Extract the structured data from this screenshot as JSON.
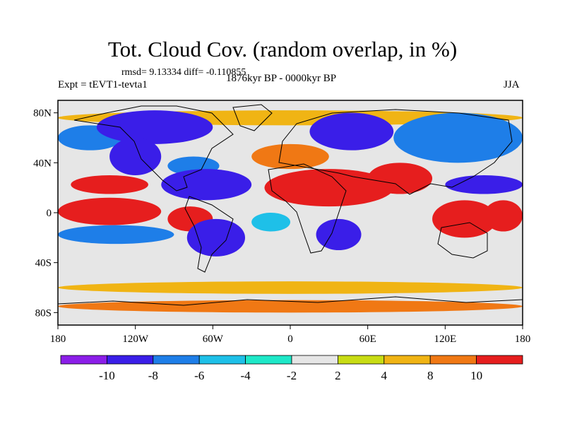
{
  "title": "Tot. Cloud Cov. (random overlap, in %)",
  "stats": "rmsd= 9.13334 diff= -0.110855",
  "experiment": "Expt = tEVT1-tevta1",
  "period": "1876kyr BP - 0000kyr BP",
  "season": "JJA",
  "chart_data": {
    "type": "heatmap",
    "variable": "Total cloud cover difference (random overlap)",
    "units": "%",
    "projection": "cylindrical equidistant",
    "x_range": [
      -180,
      180
    ],
    "y_range": [
      -90,
      90
    ],
    "x_ticks": [
      {
        "value": -180,
        "label": "180"
      },
      {
        "value": -120,
        "label": "120W"
      },
      {
        "value": -60,
        "label": "60W"
      },
      {
        "value": 0,
        "label": "0"
      },
      {
        "value": 60,
        "label": "60E"
      },
      {
        "value": 120,
        "label": "120E"
      },
      {
        "value": 180,
        "label": "180"
      }
    ],
    "y_ticks": [
      {
        "value": 80,
        "label": "80N"
      },
      {
        "value": 40,
        "label": "40N"
      },
      {
        "value": 0,
        "label": "0"
      },
      {
        "value": -40,
        "label": "40S"
      },
      {
        "value": -80,
        "label": "80S"
      }
    ],
    "colorbar": {
      "levels": [
        -10,
        -8,
        -6,
        -4,
        -2,
        2,
        4,
        8,
        10
      ],
      "labels": [
        "-10",
        "-8",
        "-6",
        "-4",
        "-2",
        "2",
        "4",
        "8",
        "10"
      ],
      "colors": [
        "#8b1ee8",
        "#3a1ee8",
        "#1e7ee8",
        "#1ec0e8",
        "#1ee8c8",
        "#e6e6e6",
        "#c8dc14",
        "#f0b414",
        "#f07814",
        "#e61e1e"
      ]
    },
    "regions": [
      {
        "lon": [
          -180,
          180
        ],
        "lat": [
          -90,
          90
        ],
        "value": 0
      },
      {
        "lon": [
          -180,
          180
        ],
        "lat": [
          70,
          82
        ],
        "value": 6
      },
      {
        "lon": [
          -180,
          -130
        ],
        "lat": [
          50,
          70
        ],
        "value": -7
      },
      {
        "lon": [
          -150,
          -60
        ],
        "lat": [
          55,
          82
        ],
        "value": -10
      },
      {
        "lon": [
          -140,
          -100
        ],
        "lat": [
          30,
          60
        ],
        "value": -9
      },
      {
        "lon": [
          -95,
          -55
        ],
        "lat": [
          30,
          45
        ],
        "value": -7
      },
      {
        "lon": [
          -170,
          -110
        ],
        "lat": [
          15,
          30
        ],
        "value": 10
      },
      {
        "lon": [
          -100,
          -30
        ],
        "lat": [
          10,
          35
        ],
        "value": -10
      },
      {
        "lon": [
          -180,
          -100
        ],
        "lat": [
          -10,
          12
        ],
        "value": 10
      },
      {
        "lon": [
          -95,
          -60
        ],
        "lat": [
          -15,
          5
        ],
        "value": 10
      },
      {
        "lon": [
          -80,
          -35
        ],
        "lat": [
          -35,
          -5
        ],
        "value": -10
      },
      {
        "lon": [
          -180,
          -90
        ],
        "lat": [
          -25,
          -10
        ],
        "value": -8
      },
      {
        "lon": [
          -30,
          30
        ],
        "lat": [
          35,
          55
        ],
        "value": 8
      },
      {
        "lon": [
          -30,
          0
        ],
        "lat": [
          -15,
          0
        ],
        "value": -6
      },
      {
        "lon": [
          -20,
          80
        ],
        "lat": [
          5,
          35
        ],
        "value": 10
      },
      {
        "lon": [
          20,
          55
        ],
        "lat": [
          -30,
          -5
        ],
        "value": -10
      },
      {
        "lon": [
          15,
          80
        ],
        "lat": [
          50,
          80
        ],
        "value": -9
      },
      {
        "lon": [
          80,
          180
        ],
        "lat": [
          40,
          80
        ],
        "value": -8
      },
      {
        "lon": [
          60,
          110
        ],
        "lat": [
          15,
          40
        ],
        "value": 10
      },
      {
        "lon": [
          110,
          160
        ],
        "lat": [
          -20,
          10
        ],
        "value": 10
      },
      {
        "lon": [
          120,
          180
        ],
        "lat": [
          15,
          30
        ],
        "value": -10
      },
      {
        "lon": [
          150,
          180
        ],
        "lat": [
          -15,
          10
        ],
        "value": 10
      },
      {
        "lon": [
          -180,
          180
        ],
        "lat": [
          -65,
          -55
        ],
        "value": 6
      },
      {
        "lon": [
          -180,
          180
        ],
        "lat": [
          -80,
          -70
        ],
        "value": 8
      }
    ]
  }
}
